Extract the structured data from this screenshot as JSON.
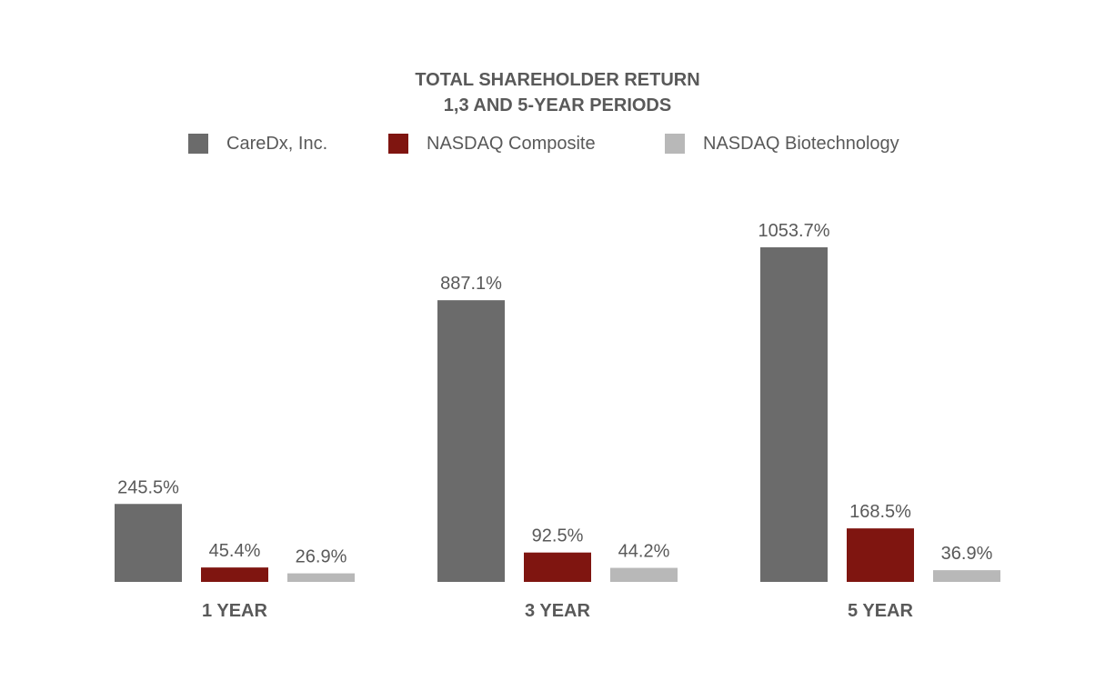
{
  "chart_data": {
    "type": "bar",
    "title_lines": [
      "TOTAL SHAREHOLDER RETURN",
      "1,3 AND 5-YEAR PERIODS"
    ],
    "categories": [
      "1 YEAR",
      "3 YEAR",
      "5 YEAR"
    ],
    "series": [
      {
        "name": "CareDx, Inc.",
        "color": "#6b6b6b",
        "values": [
          245.5,
          887.1,
          1053.7
        ],
        "labels": [
          "245.5%",
          "887.1%",
          "1053.7%"
        ]
      },
      {
        "name": "NASDAQ Composite",
        "color": "#7f1510",
        "values": [
          45.4,
          92.5,
          168.5
        ],
        "labels": [
          "45.4%",
          "92.5%",
          "168.5%"
        ]
      },
      {
        "name": "NASDAQ Biotechnology",
        "color": "#b8b8b8",
        "values": [
          26.9,
          44.2,
          36.9
        ],
        "labels": [
          "26.9%",
          "44.2%",
          "36.9%"
        ]
      }
    ],
    "xlabel": "",
    "ylabel": "",
    "ylim": [
      0,
      1053.7
    ],
    "grid": false,
    "legend_position": "top"
  }
}
